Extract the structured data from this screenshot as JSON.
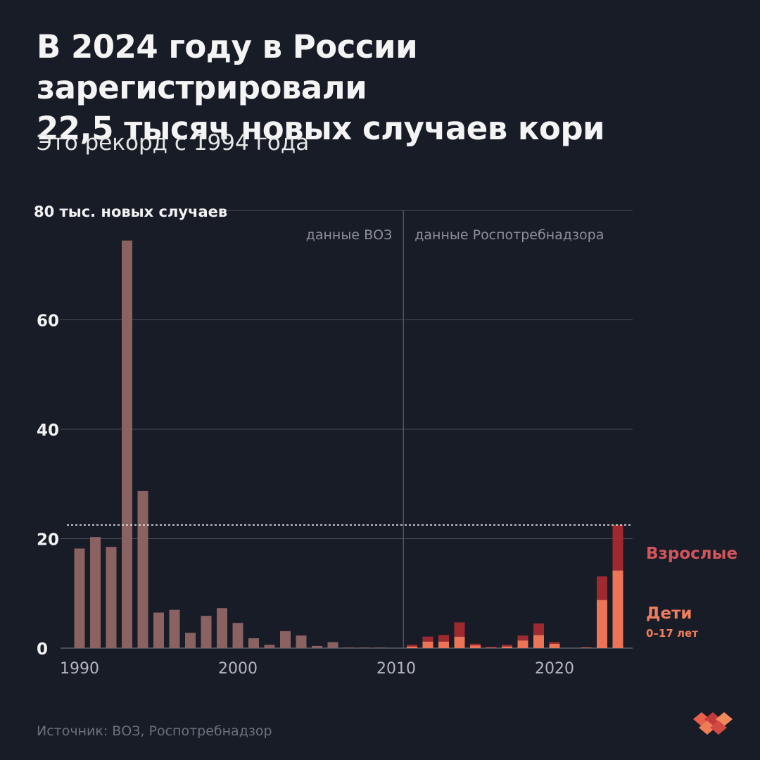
{
  "title": {
    "line1": "В 2024 году в России зарегистрировали",
    "line2": "22,5 тысяч новых случаев кори"
  },
  "subtitle": "Это рекорд с 1994 года",
  "source": "Источник: ВОЗ, Роспотребнадзор",
  "colors": {
    "background": "#181c27",
    "who_bars": "#8a6262",
    "adults": "#9e2a30",
    "children": "#ec7558",
    "grid": "#4a4e59",
    "axis_text": "#b5b7bd",
    "adults_label": "#d2555b",
    "children_label": "#ef7e5e"
  },
  "chart_data": {
    "type": "bar",
    "y_unit_label": "80 тыс. новых случаев",
    "ylim": [
      0,
      80
    ],
    "y_ticks": [
      {
        "value": 0,
        "label": "0"
      },
      {
        "value": 20,
        "label": "20"
      },
      {
        "value": 40,
        "label": "40"
      },
      {
        "value": 60,
        "label": "60"
      },
      {
        "value": 80,
        "label": "80"
      }
    ],
    "xlim": [
      1990,
      2024
    ],
    "x_ticks": [
      {
        "value": 1990,
        "label": "1990"
      },
      {
        "value": 2000,
        "label": "2000"
      },
      {
        "value": 2010,
        "label": "2010"
      },
      {
        "value": 2020,
        "label": "2020"
      }
    ],
    "reference_line": 22.5,
    "grid": true,
    "annotations": {
      "who": "данные ВОЗ",
      "rpn": "данные Роспотребнадзора"
    },
    "divider_year": 2010.5,
    "who_series": {
      "years": [
        1990,
        1991,
        1992,
        1993,
        1994,
        1995,
        1996,
        1997,
        1998,
        1999,
        2000,
        2001,
        2002,
        2003,
        2004,
        2005,
        2006,
        2007,
        2008,
        2009
      ],
      "values": [
        18.2,
        20.3,
        18.5,
        74.5,
        28.7,
        6.5,
        7.0,
        2.8,
        5.9,
        7.3,
        4.6,
        1.8,
        0.6,
        3.1,
        2.3,
        0.4,
        1.1,
        0.1,
        0.1,
        0.1
      ]
    },
    "rpn_series": {
      "years": [
        2011,
        2012,
        2013,
        2014,
        2015,
        2016,
        2017,
        2018,
        2019,
        2020,
        2021,
        2022,
        2023,
        2024
      ],
      "children": [
        0.3,
        1.2,
        1.2,
        2.1,
        0.5,
        0.1,
        0.3,
        1.4,
        2.4,
        0.8,
        0.0,
        0.1,
        8.8,
        14.2
      ],
      "adults": [
        0.3,
        0.9,
        1.2,
        2.6,
        0.3,
        0.1,
        0.3,
        0.9,
        2.1,
        0.3,
        0.0,
        0.0,
        4.3,
        8.3
      ]
    },
    "legend": {
      "adults": "Взрослые",
      "children": "Дети",
      "children_age": "0–17 лет"
    }
  }
}
